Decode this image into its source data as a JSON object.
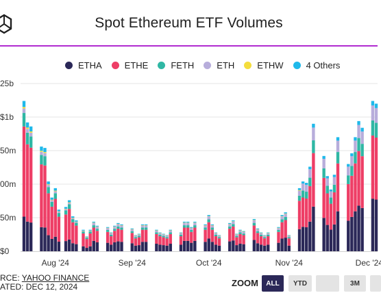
{
  "title": "Spot Ethereum ETF Volumes",
  "colors": {
    "accent_rule": "#b02bd0",
    "zoom_active": "#2b2858"
  },
  "legend": [
    {
      "name": "ETHA",
      "color": "#2b2858"
    },
    {
      "name": "ETHE",
      "color": "#ee3e66"
    },
    {
      "name": "FETH",
      "color": "#2fb7a4"
    },
    {
      "name": "ETH",
      "color": "#b7addb"
    },
    {
      "name": "ETHW",
      "color": "#f4dd3c"
    },
    {
      "name": "4 Others",
      "color": "#1fb9ea"
    }
  ],
  "source": {
    "label": "RCE: ",
    "link": "YAHOO FINANCE",
    "updated": "ATED: DEC 12, 2024"
  },
  "zoom": {
    "label": "ZOOM",
    "buttons": [
      {
        "label": "ALL",
        "active": true
      },
      {
        "label": "YTD",
        "active": false
      },
      {
        "label": "",
        "active": false
      },
      {
        "label": "3M",
        "active": false
      },
      {
        "label": "",
        "active": false
      }
    ]
  },
  "chart_data": {
    "type": "bar",
    "stacked": true,
    "ylim": [
      0,
      1.25
    ],
    "yticks": [
      {
        "v": 1.25,
        "label": "25b"
      },
      {
        "v": 1.0,
        "label": "$1b"
      },
      {
        "v": 0.75,
        "label": "50m"
      },
      {
        "v": 0.5,
        "label": "00m"
      },
      {
        "v": 0.25,
        "label": "50m"
      },
      {
        "v": 0,
        "label": "$0"
      }
    ],
    "xticks": [
      {
        "i": 9,
        "label": "Aug '24"
      },
      {
        "i": 31,
        "label": "Sep '24"
      },
      {
        "i": 53,
        "label": "Oct '24"
      },
      {
        "i": 76,
        "label": "Nov '24"
      },
      {
        "i": 99,
        "label": "Dec '24"
      }
    ],
    "series_names": [
      "ETHA",
      "ETHE",
      "FETH",
      "ETH",
      "ETHW",
      "4 Others"
    ],
    "series_colors": [
      "#2b2858",
      "#ee3e66",
      "#2fb7a4",
      "#b7addb",
      "#f4dd3c",
      "#1fb9ea"
    ],
    "totals": [
      1.12,
      0.96,
      0.93,
      0.0,
      0.0,
      0.78,
      0.77,
      0.52,
      0.4,
      0.47,
      0.31,
      0.0,
      0.33,
      0.38,
      0.26,
      0.23,
      0.0,
      0.16,
      0.11,
      0.16,
      0.22,
      0.19,
      0.0,
      0.0,
      0.18,
      0.14,
      0.19,
      0.21,
      0.2,
      0.0,
      0.0,
      0.17,
      0.12,
      0.13,
      0.2,
      0.2,
      0.0,
      0.0,
      0.16,
      0.14,
      0.13,
      0.12,
      0.16,
      0.0,
      0.0,
      0.14,
      0.22,
      0.22,
      0.18,
      0.22,
      0.0,
      0.0,
      0.2,
      0.27,
      0.2,
      0.14,
      0.12,
      0.0,
      0.0,
      0.21,
      0.23,
      0.13,
      0.16,
      0.15,
      0.0,
      0.0,
      0.24,
      0.17,
      0.14,
      0.12,
      0.14,
      0.0,
      0.0,
      0.18,
      0.27,
      0.29,
      0.12,
      0.0,
      0.0,
      0.47,
      0.52,
      0.51,
      0.63,
      0.95,
      0.0,
      0.0,
      0.71,
      0.56,
      0.46,
      0.57,
      0.85,
      0.0,
      0.0,
      0.65,
      0.73,
      0.85,
      0.97,
      0.92,
      0.0,
      0.0,
      1.12,
      1.1
    ],
    "shares": [
      [
        0.23,
        0.6,
        0.09,
        0.03,
        0.01,
        0.04
      ],
      [
        0.35,
        0.45,
        0.08,
        0.08,
        0.01,
        0.03
      ],
      [
        0.35,
        0.42,
        0.1,
        0.1,
        0.0,
        0.03
      ]
    ],
    "share_breaks": [
      20,
      80
    ]
  }
}
